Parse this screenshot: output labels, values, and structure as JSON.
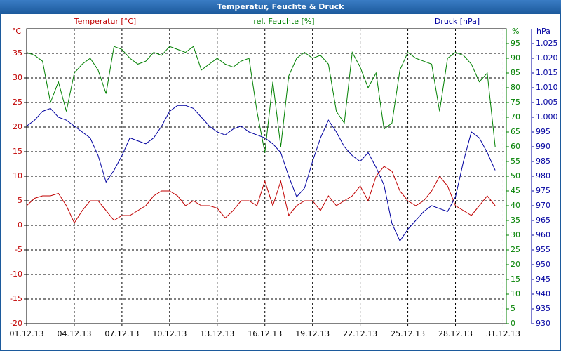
{
  "chart_data": {
    "type": "line",
    "title": "Temperatur, Feuchte & Druck",
    "yunit": "°C",
    "y2unit": "%",
    "y3unit": "hPa",
    "x": [
      0,
      0.5,
      1,
      1.5,
      2,
      2.5,
      3,
      3.5,
      4,
      4.5,
      5,
      5.5,
      6,
      6.5,
      7,
      7.5,
      8,
      8.5,
      9,
      9.5,
      10,
      10.5,
      11,
      11.5,
      12,
      12.5,
      13,
      13.5,
      14,
      14.5,
      15,
      15.5,
      16,
      16.5,
      17,
      17.5,
      18,
      18.5,
      19,
      19.5,
      20,
      20.5,
      21,
      21.5,
      22,
      22.5,
      23,
      23.5,
      24,
      24.5,
      25,
      25.5,
      26,
      26.5,
      27,
      27.5,
      28,
      28.5,
      29,
      29.5
    ],
    "xlim": [
      0,
      30.2
    ],
    "xticks": [
      {
        "value": 0,
        "label": "01.12.13"
      },
      {
        "value": 3,
        "label": "04.12.13"
      },
      {
        "value": 6,
        "label": "07.12.13"
      },
      {
        "value": 9,
        "label": "10.12.13"
      },
      {
        "value": 12,
        "label": "13.12.13"
      },
      {
        "value": 15,
        "label": "16.12.13"
      },
      {
        "value": 18,
        "label": "19.12.13"
      },
      {
        "value": 21,
        "label": "22.12.13"
      },
      {
        "value": 24,
        "label": "25.12.13"
      },
      {
        "value": 27,
        "label": "28.12.13"
      },
      {
        "value": 30,
        "label": "31.12.13"
      }
    ],
    "ylim": [
      -20,
      40
    ],
    "yticks": [
      -20,
      -15,
      -10,
      -5,
      0,
      5,
      10,
      15,
      20,
      25,
      30,
      35
    ],
    "y2lim": [
      0,
      100
    ],
    "y2ticks": [
      0,
      5,
      10,
      15,
      20,
      25,
      30,
      35,
      40,
      45,
      50,
      55,
      60,
      65,
      70,
      75,
      80,
      85,
      90,
      95
    ],
    "y3lim": [
      930,
      1030
    ],
    "y3ticks": [
      930,
      935,
      940,
      945,
      950,
      955,
      960,
      965,
      970,
      975,
      980,
      985,
      990,
      995,
      {
        "value": 1000,
        "label": "1.000"
      },
      {
        "value": 1005,
        "label": "1.005"
      },
      {
        "value": 1010,
        "label": "1.010"
      },
      {
        "value": 1015,
        "label": "1.015"
      },
      {
        "value": 1020,
        "label": "1.020"
      },
      {
        "value": 1025,
        "label": "1.025"
      }
    ],
    "grid": true,
    "series": [
      {
        "name": "Temperatur [°C]",
        "color": "#c00000",
        "axis": "y",
        "values": [
          4,
          5.5,
          6,
          6,
          6.5,
          4,
          0.5,
          3,
          5,
          5,
          3,
          1,
          2,
          2,
          3,
          4,
          6,
          7,
          7,
          6,
          4,
          5,
          4,
          4,
          3.5,
          1.5,
          3,
          5,
          5,
          4,
          9,
          4,
          9,
          2,
          4,
          5,
          5,
          3,
          6,
          4,
          5,
          6,
          8,
          5,
          10,
          12,
          11,
          7,
          5,
          4,
          5,
          7,
          10,
          8,
          4,
          3,
          2,
          4,
          6,
          4
        ]
      },
      {
        "name": "rel. Feuchte [%]",
        "color": "#008000",
        "axis": "y2",
        "values": [
          92,
          91,
          89,
          75,
          82,
          72,
          85,
          88,
          90,
          86,
          78,
          94,
          93,
          90,
          88,
          89,
          92,
          91,
          94,
          93,
          92,
          94,
          86,
          88,
          90,
          88,
          87,
          89,
          90,
          72,
          58,
          82,
          60,
          84,
          90,
          92,
          90,
          91,
          88,
          72,
          68,
          92,
          87,
          80,
          85,
          66,
          68,
          86,
          92,
          90,
          89,
          88,
          72,
          90,
          92,
          91,
          88,
          82,
          85,
          60
        ]
      },
      {
        "name": "Druck [hPa]",
        "color": "#0000a0",
        "axis": "y3",
        "values": [
          997,
          999,
          1002,
          1003,
          1000,
          999,
          997,
          995,
          993,
          987,
          978,
          982,
          987,
          993,
          992,
          991,
          993,
          997,
          1002,
          1004,
          1004,
          1003,
          1000,
          997,
          995,
          994,
          996,
          997,
          995,
          994,
          993,
          991,
          988,
          980,
          973,
          976,
          985,
          993,
          999,
          995,
          990,
          987,
          985,
          988,
          983,
          977,
          964,
          958,
          962,
          965,
          968,
          970,
          969,
          968,
          973,
          985,
          995,
          993,
          988,
          982
        ]
      }
    ]
  }
}
